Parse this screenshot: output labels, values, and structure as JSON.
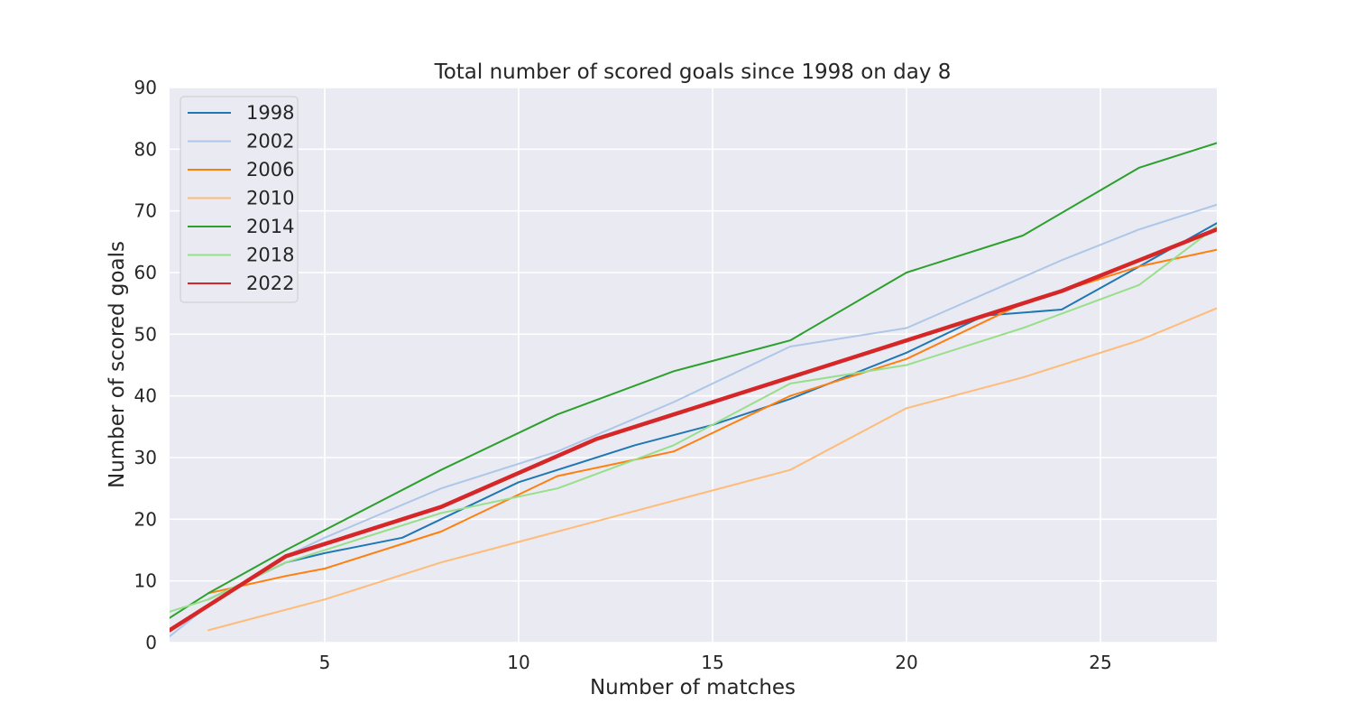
{
  "chart_data": {
    "type": "line",
    "title": "Total number of scored goals since 1998 on day 8",
    "xlabel": "Number of matches",
    "ylabel": "Number of scored goals",
    "xlim": [
      1,
      28
    ],
    "ylim": [
      0,
      90
    ],
    "xticks": [
      5,
      10,
      15,
      20,
      25
    ],
    "yticks": [
      0,
      10,
      20,
      30,
      40,
      50,
      60,
      70,
      80,
      90
    ],
    "grid": true,
    "legend_position": "upper-left",
    "series": [
      {
        "name": "1998",
        "color": "#1f77b4",
        "highlight": false,
        "points": [
          [
            2,
            7
          ],
          [
            4,
            13
          ],
          [
            5,
            14.5
          ],
          [
            7,
            17
          ],
          [
            8,
            20
          ],
          [
            10,
            26
          ],
          [
            11,
            28
          ],
          [
            13,
            32
          ],
          [
            15,
            35.3
          ],
          [
            17,
            39.5
          ],
          [
            20,
            47
          ],
          [
            22,
            53
          ],
          [
            24,
            54
          ],
          [
            26,
            61
          ],
          [
            28,
            68
          ]
        ]
      },
      {
        "name": "2002",
        "color": "#aec7e8",
        "highlight": false,
        "points": [
          [
            1,
            1
          ],
          [
            2,
            6
          ],
          [
            4,
            14
          ],
          [
            5,
            17
          ],
          [
            8,
            25
          ],
          [
            11,
            31
          ],
          [
            14,
            39
          ],
          [
            17,
            48
          ],
          [
            20,
            51
          ],
          [
            24,
            62
          ],
          [
            26,
            67
          ],
          [
            28,
            71
          ]
        ]
      },
      {
        "name": "2006",
        "color": "#ff7f0e",
        "highlight": false,
        "points": [
          [
            2,
            8
          ],
          [
            4,
            10.8
          ],
          [
            5,
            12
          ],
          [
            8,
            18
          ],
          [
            10,
            24
          ],
          [
            11,
            27
          ],
          [
            14,
            31
          ],
          [
            17,
            40
          ],
          [
            20,
            46
          ],
          [
            23,
            55
          ],
          [
            24,
            57
          ],
          [
            26,
            61
          ],
          [
            28,
            63.7
          ]
        ]
      },
      {
        "name": "2010",
        "color": "#ffbb78",
        "highlight": false,
        "points": [
          [
            2,
            2
          ],
          [
            5,
            7
          ],
          [
            8,
            13
          ],
          [
            11,
            18
          ],
          [
            14,
            23
          ],
          [
            17,
            28
          ],
          [
            20,
            38
          ],
          [
            23,
            43
          ],
          [
            26,
            49
          ],
          [
            28,
            54.2
          ]
        ]
      },
      {
        "name": "2014",
        "color": "#2ca02c",
        "highlight": false,
        "points": [
          [
            1,
            4
          ],
          [
            2,
            8
          ],
          [
            4,
            15
          ],
          [
            8,
            28
          ],
          [
            11,
            37
          ],
          [
            14,
            44
          ],
          [
            17,
            49
          ],
          [
            20,
            60
          ],
          [
            23,
            66
          ],
          [
            26,
            77
          ],
          [
            28,
            81
          ]
        ]
      },
      {
        "name": "2018",
        "color": "#98df8a",
        "highlight": false,
        "points": [
          [
            1,
            5
          ],
          [
            2,
            7
          ],
          [
            4,
            13
          ],
          [
            8,
            21
          ],
          [
            11,
            25
          ],
          [
            14,
            32
          ],
          [
            17,
            42
          ],
          [
            20,
            45
          ],
          [
            23,
            51
          ],
          [
            26,
            58
          ],
          [
            28,
            67.5
          ]
        ]
      },
      {
        "name": "2022",
        "color": "#d62728",
        "highlight": true,
        "points": [
          [
            1,
            2
          ],
          [
            2,
            6
          ],
          [
            4,
            14
          ],
          [
            5,
            16
          ],
          [
            8,
            22
          ],
          [
            10,
            27.5
          ],
          [
            12,
            33
          ],
          [
            14,
            37
          ],
          [
            17,
            43
          ],
          [
            20,
            49
          ],
          [
            22,
            53
          ],
          [
            24,
            57
          ],
          [
            26,
            62
          ],
          [
            28,
            67
          ]
        ]
      }
    ]
  }
}
